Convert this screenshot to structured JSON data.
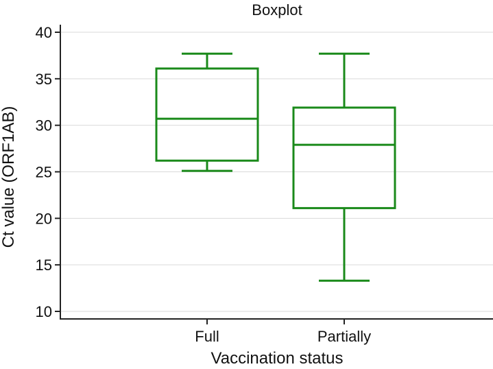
{
  "chart_data": {
    "type": "boxplot",
    "title": "Boxplot",
    "xlabel": "Vaccination status",
    "ylabel": "Ct value (ORF1AB)",
    "ylim": [
      10,
      40
    ],
    "yticks": [
      "10",
      "15",
      "20",
      "25",
      "30",
      "35",
      "40"
    ],
    "grid": true,
    "color": "#1a8a1a",
    "boxes": [
      {
        "category": "Full",
        "whisker_low": 25.1,
        "q1": 26.2,
        "median": 30.7,
        "q3": 36.1,
        "whisker_high": 37.7
      },
      {
        "category": "Partially",
        "whisker_low": 13.3,
        "q1": 21.1,
        "median": 27.9,
        "q3": 31.9,
        "whisker_high": 37.7
      }
    ]
  }
}
